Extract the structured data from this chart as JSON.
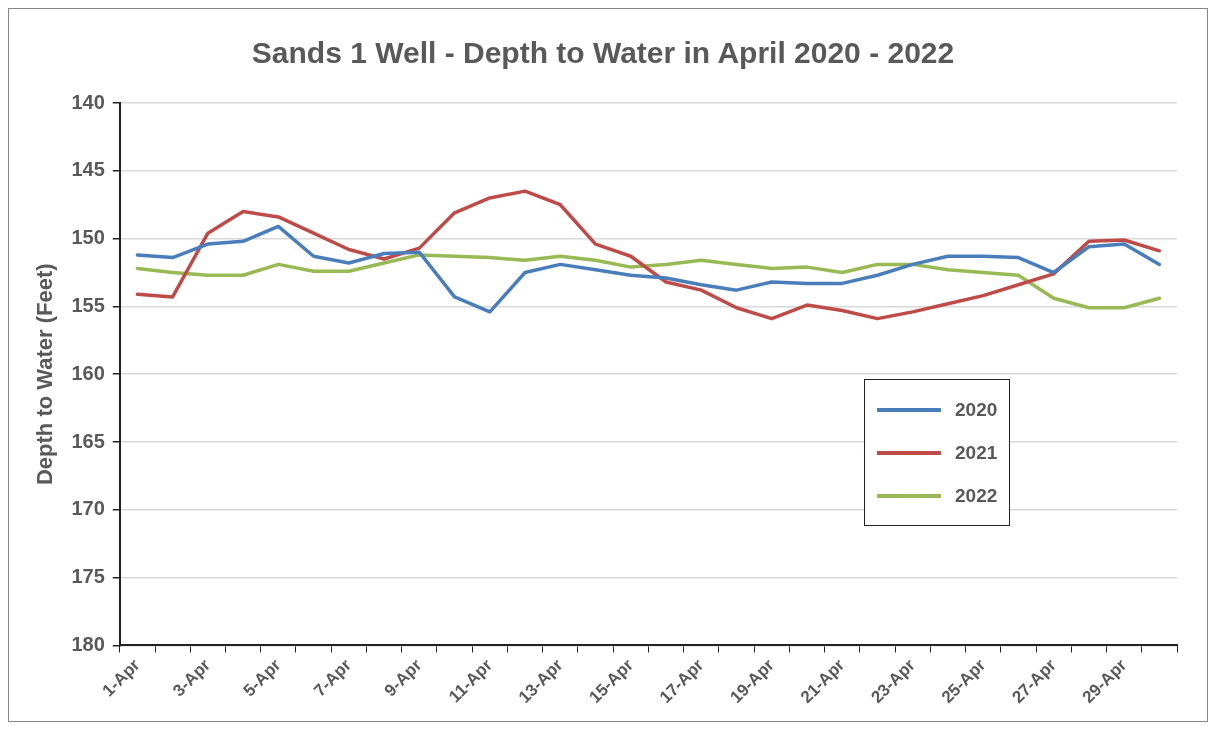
{
  "chart_data": {
    "type": "line",
    "title": "Sands 1 Well - Depth to Water in April 2020 - 2022",
    "ylabel": "Depth to Water (Feet)",
    "categories": [
      "1-Apr",
      null,
      "3-Apr",
      null,
      "5-Apr",
      null,
      "7-Apr",
      null,
      "9-Apr",
      null,
      "11-Apr",
      null,
      "13-Apr",
      null,
      "15-Apr",
      null,
      "17-Apr",
      null,
      "19-Apr",
      null,
      "21-Apr",
      null,
      "23-Apr",
      null,
      "25-Apr",
      null,
      "27-Apr",
      null,
      "29-Apr",
      null
    ],
    "series": [
      {
        "name": "2020",
        "color": "#4a7ebb",
        "values": [
          151.2,
          151.4,
          150.4,
          150.2,
          149.1,
          151.3,
          151.8,
          151.1,
          151.0,
          154.3,
          155.4,
          152.5,
          151.9,
          152.3,
          152.7,
          152.9,
          153.4,
          153.8,
          153.2,
          153.3,
          153.3,
          152.7,
          151.9,
          151.3,
          151.3,
          151.4,
          152.5,
          150.6,
          150.4,
          151.9
        ]
      },
      {
        "name": "2021",
        "color": "#be4b48",
        "values": [
          154.1,
          154.3,
          149.6,
          148.0,
          148.4,
          149.6,
          150.8,
          151.5,
          150.7,
          148.1,
          147.0,
          146.5,
          147.5,
          150.4,
          151.3,
          153.2,
          153.8,
          155.1,
          155.9,
          154.9,
          155.3,
          155.9,
          155.4,
          154.8,
          154.2,
          153.4,
          152.6,
          150.2,
          150.1,
          150.9
        ]
      },
      {
        "name": "2022",
        "color": "#98b954",
        "values": [
          152.2,
          152.5,
          152.7,
          152.7,
          151.9,
          152.4,
          152.4,
          151.8,
          151.2,
          151.3,
          151.4,
          151.6,
          151.3,
          151.6,
          152.1,
          151.9,
          151.6,
          151.9,
          152.2,
          152.1,
          152.5,
          151.9,
          151.9,
          152.3,
          152.5,
          152.7,
          154.4,
          155.1,
          155.1,
          154.4
        ]
      }
    ],
    "ylim": [
      180,
      140
    ],
    "yticks": [
      140,
      145,
      150,
      155,
      160,
      165,
      170,
      175,
      180
    ],
    "grid": "y",
    "legend": "right",
    "marker": "none",
    "line_style": "solid"
  }
}
